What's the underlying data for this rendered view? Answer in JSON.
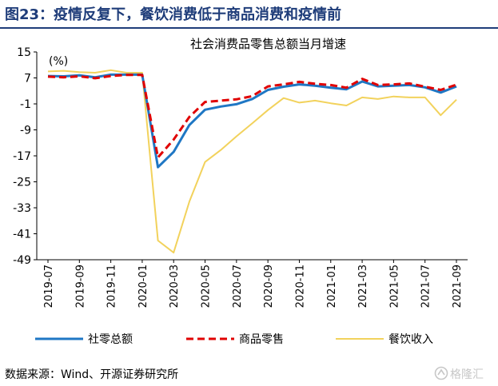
{
  "header": {
    "title": "图23：疫情反复下，餐饮消费低于商品消费和疫情前"
  },
  "source": "数据来源：Wind、开源证券研究所",
  "watermark": {
    "text": "格隆汇",
    "icon": "logo-mark"
  },
  "colors": {
    "accent": "#1f3d7a",
    "retail": "#1f77c4",
    "goods": "#e00000",
    "catering": "#f2d25c"
  },
  "chart_data": {
    "type": "line",
    "title": "社会消费品零售总额当月增速",
    "unit_label": "(%)",
    "ylim": [
      -49,
      15
    ],
    "yticks": [
      15,
      7,
      -1,
      -9,
      -17,
      -25,
      -33,
      -41,
      -49
    ],
    "x": [
      "2019-07",
      "2019-08",
      "2019-09",
      "2019-10",
      "2019-11",
      "2019-12",
      "2020-01",
      "2020-02",
      "2020-03",
      "2020-04",
      "2020-05",
      "2020-06",
      "2020-07",
      "2020-08",
      "2020-09",
      "2020-10",
      "2020-11",
      "2020-12",
      "2021-01",
      "2021-02",
      "2021-03",
      "2021-04",
      "2021-05",
      "2021-06",
      "2021-07",
      "2021-08",
      "2021-09"
    ],
    "xtick_labels": [
      "2019-07",
      "2019-09",
      "2019-11",
      "2020-01",
      "2020-03",
      "2020-05",
      "2020-07",
      "2020-09",
      "2020-11",
      "2021-01",
      "2021-03",
      "2021-05",
      "2021-07",
      "2021-09"
    ],
    "grid": false,
    "legend_position": "bottom",
    "series": [
      {
        "name": "社零总额",
        "color": "#1f77c4",
        "style": "solid",
        "values": [
          7.6,
          7.5,
          7.8,
          7.2,
          8.0,
          8.0,
          8.0,
          -20.5,
          -15.8,
          -7.5,
          -2.8,
          -1.8,
          -1.1,
          0.5,
          3.3,
          4.3,
          5.0,
          4.6,
          4.0,
          3.5,
          5.9,
          4.4,
          4.6,
          4.8,
          4.1,
          2.5,
          4.4
        ]
      },
      {
        "name": "商品零售",
        "color": "#e00000",
        "style": "dashed",
        "values": [
          7.4,
          7.2,
          7.5,
          6.9,
          7.6,
          7.9,
          7.9,
          -17.5,
          -12.0,
          -5.0,
          -0.4,
          0.0,
          0.4,
          1.4,
          4.4,
          5.0,
          5.8,
          5.2,
          4.8,
          4.0,
          6.7,
          4.8,
          5.0,
          5.3,
          4.3,
          3.3,
          4.9
        ]
      },
      {
        "name": "餐饮收入",
        "color": "#f2d25c",
        "style": "solid",
        "values": [
          9.0,
          9.2,
          8.8,
          8.6,
          9.4,
          8.6,
          8.6,
          -43.1,
          -46.8,
          -31.1,
          -18.9,
          -15.2,
          -11.0,
          -7.0,
          -2.9,
          0.8,
          -0.6,
          0.0,
          -0.8,
          -1.5,
          1.0,
          0.5,
          1.3,
          1.0,
          1.0,
          -4.5,
          0.3
        ]
      }
    ]
  }
}
